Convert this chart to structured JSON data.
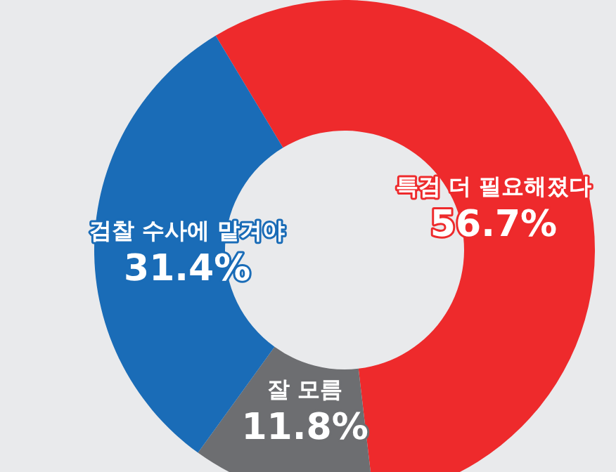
{
  "chart_data": {
    "type": "donut",
    "categories": [
      "특검 더 필요해졌다",
      "잘 모름",
      "검찰 수사에 맡겨야"
    ],
    "values": [
      56.7,
      11.8,
      31.4
    ],
    "colors": [
      "#ee2a2c",
      "#6d6e71",
      "#1a6cb7"
    ],
    "value_labels": [
      "56.7%",
      "11.8%",
      "31.4%"
    ]
  }
}
